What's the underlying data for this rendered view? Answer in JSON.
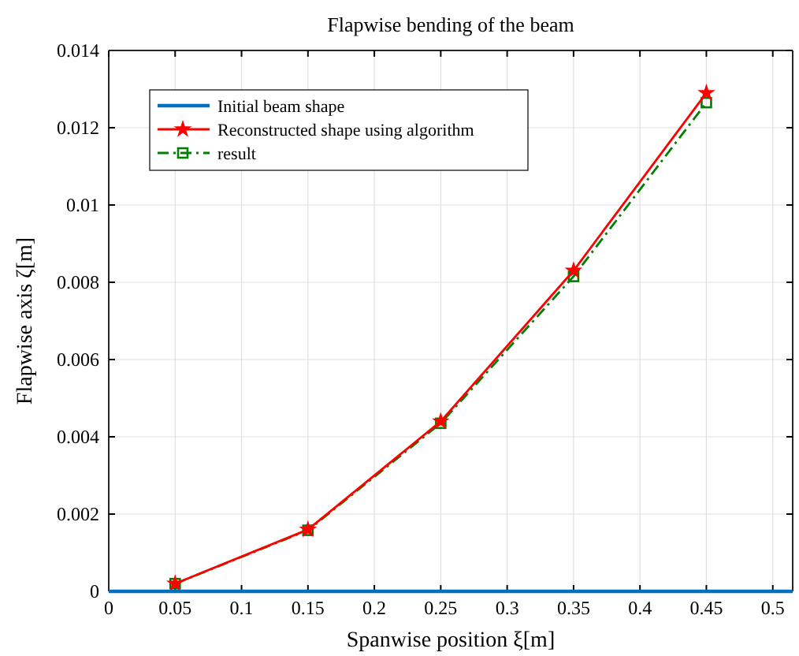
{
  "chart_data": {
    "type": "line",
    "title": "Flapwise bending of the beam",
    "xlabel": "Spanwise position ξ[m]",
    "ylabel": "Flapwise axis ζ[m]",
    "xlim": [
      0,
      0.515
    ],
    "xticks": [
      0,
      0.05,
      0.1,
      0.15,
      0.2,
      0.25,
      0.3,
      0.35,
      0.4,
      0.45,
      0.5
    ],
    "ylim": [
      0,
      0.014
    ],
    "yticks": [
      0,
      0.002,
      0.004,
      0.006,
      0.008,
      0.01,
      0.012,
      0.014
    ],
    "grid": true,
    "legend": "top left",
    "series": [
      {
        "name": "Initial beam shape",
        "color": "#0072bd",
        "x": [
          0,
          0.515
        ],
        "values": [
          0,
          0
        ],
        "marker": "none",
        "line_style": "solid"
      },
      {
        "name": "Reconstructed shape using algorithm",
        "color": "#ff0000",
        "x": [
          0.05,
          0.15,
          0.25,
          0.35,
          0.45
        ],
        "values": [
          0.0002,
          0.0016,
          0.0044,
          0.0083,
          0.0129
        ],
        "marker": "star",
        "line_style": "solid"
      },
      {
        "name": "result",
        "color": "#008000",
        "x": [
          0.05,
          0.15,
          0.25,
          0.35,
          0.45
        ],
        "values": [
          0.0002,
          0.00158,
          0.00435,
          0.00815,
          0.01265
        ],
        "marker": "square",
        "line_style": "dashed"
      }
    ]
  }
}
